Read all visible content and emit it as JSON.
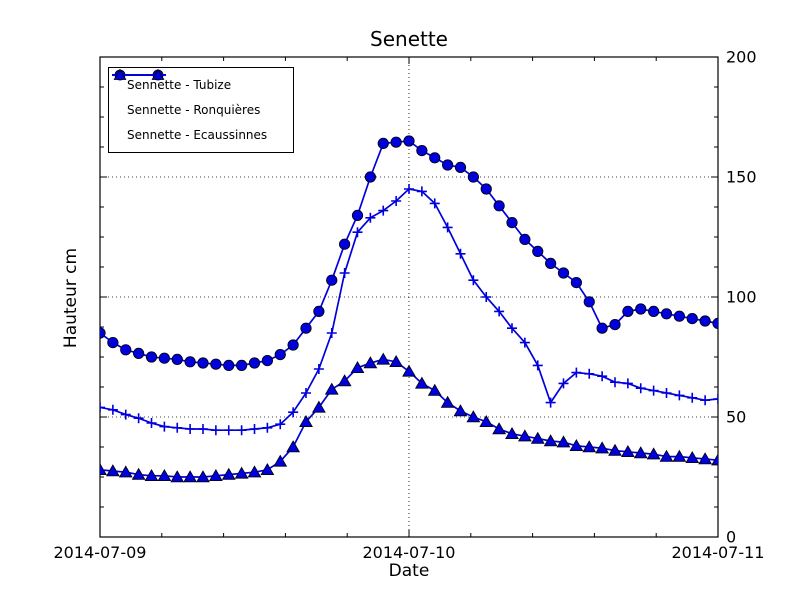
{
  "chart": {
    "title": "Senette",
    "xlabel": "Date",
    "ylabel": "Hauteur cm"
  },
  "chart_data": {
    "type": "line",
    "title": "Senette",
    "xlabel": "Date",
    "ylabel": "Hauteur cm",
    "background": "#ffffff",
    "line_color": "#0000dd",
    "marker_edge_color": "#000000",
    "grid": {
      "style": "dotted",
      "y_at": [
        50,
        100,
        150
      ],
      "x_at_hours": [
        24
      ]
    },
    "ylim": [
      0,
      200
    ],
    "y_ticks": [
      0,
      50,
      100,
      150,
      200
    ],
    "y_minor_step": 12.5,
    "xlim_hours": [
      0,
      48
    ],
    "x_ticks": {
      "positions_hours": [
        0,
        24,
        48
      ],
      "labels": [
        "2014-07-09",
        "2014-07-10",
        "2014-07-11"
      ]
    },
    "x_minor_step_hours": 4.8,
    "legend_position": "upper-left",
    "x_unit": "hours since 2014-07-09 00:00",
    "x_hours": [
      0,
      1,
      2,
      3,
      4,
      5,
      6,
      7,
      8,
      9,
      10,
      11,
      12,
      13,
      14,
      15,
      16,
      17,
      18,
      19,
      20,
      21,
      22,
      23,
      24,
      25,
      26,
      27,
      28,
      29,
      30,
      31,
      32,
      33,
      34,
      35,
      36,
      37,
      38,
      39,
      40,
      41,
      42,
      43,
      44,
      45,
      46,
      47,
      48
    ],
    "series": [
      {
        "name": "Sennette - Tubize",
        "marker": "circle",
        "values": [
          85,
          81,
          78,
          76.5,
          75,
          74.5,
          74,
          73,
          72.5,
          72,
          71.5,
          71.5,
          72.5,
          73.5,
          76,
          80,
          87,
          94,
          107,
          122,
          134,
          150,
          164,
          164.5,
          165,
          161,
          158,
          155,
          154,
          150,
          145,
          138,
          131,
          124,
          119,
          114,
          110,
          106,
          98,
          87,
          88.5,
          94,
          95,
          94,
          93,
          92,
          91,
          90,
          89
        ]
      },
      {
        "name": "Sennette - Ronquières",
        "marker": "plus",
        "values": [
          54,
          53,
          51,
          49.5,
          47.5,
          46,
          45.5,
          45,
          45,
          44.5,
          44.5,
          44.5,
          45,
          45.5,
          47,
          52,
          60,
          70,
          85,
          110,
          127,
          133,
          136,
          140,
          145,
          144,
          139,
          129,
          118,
          107,
          100,
          94,
          87,
          81,
          71.5,
          56,
          64,
          68.5,
          68,
          67,
          64.5,
          64,
          62,
          61,
          60,
          59,
          58,
          57,
          57.5
        ]
      },
      {
        "name": "Sennette - Ecaussinnes",
        "marker": "triangle",
        "values": [
          28,
          27.5,
          27,
          26,
          25.5,
          25.5,
          25,
          25,
          25,
          25.5,
          26,
          26.5,
          27,
          28,
          31.5,
          37.5,
          48,
          54,
          61.5,
          65,
          70.5,
          72.5,
          74,
          73,
          69,
          64,
          61,
          56,
          52.5,
          50,
          48,
          45,
          43,
          42,
          41,
          40,
          39.5,
          38,
          37.5,
          37,
          36,
          35.5,
          35,
          34.5,
          33.5,
          33.5,
          33,
          32.5,
          32
        ]
      }
    ]
  }
}
